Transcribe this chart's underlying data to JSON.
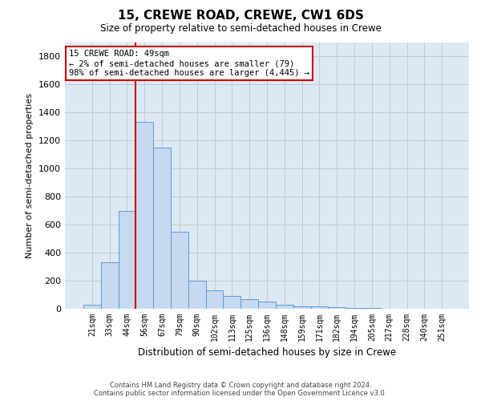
{
  "title": "15, CREWE ROAD, CREWE, CW1 6DS",
  "subtitle": "Size of property relative to semi-detached houses in Crewe",
  "xlabel": "Distribution of semi-detached houses by size in Crewe",
  "ylabel": "Number of semi-detached properties",
  "categories": [
    "21sqm",
    "33sqm",
    "44sqm",
    "56sqm",
    "67sqm",
    "79sqm",
    "90sqm",
    "102sqm",
    "113sqm",
    "125sqm",
    "136sqm",
    "148sqm",
    "159sqm",
    "171sqm",
    "182sqm",
    "194sqm",
    "205sqm",
    "217sqm",
    "228sqm",
    "240sqm",
    "251sqm"
  ],
  "values": [
    30,
    330,
    700,
    1330,
    1150,
    550,
    200,
    130,
    90,
    70,
    50,
    30,
    20,
    15,
    10,
    5,
    3,
    2,
    1,
    0,
    0
  ],
  "bar_color": "#c6d9f0",
  "bar_edge_color": "#5b9bd5",
  "property_line_x": 2.5,
  "annotation_line1": "15 CREWE ROAD: 49sqm",
  "annotation_line2": "← 2% of semi-detached houses are smaller (79)",
  "annotation_line3": "98% of semi-detached houses are larger (4,445) →",
  "annotation_box_facecolor": "#ffffff",
  "annotation_box_edgecolor": "#cc0000",
  "ylim": [
    0,
    1900
  ],
  "yticks": [
    0,
    200,
    400,
    600,
    800,
    1000,
    1200,
    1400,
    1600,
    1800
  ],
  "grid_color": "#c8c8c8",
  "axes_bg_color": "#dce9f5",
  "footer1": "Contains HM Land Registry data © Crown copyright and database right 2024.",
  "footer2": "Contains public sector information licensed under the Open Government Licence v3.0."
}
